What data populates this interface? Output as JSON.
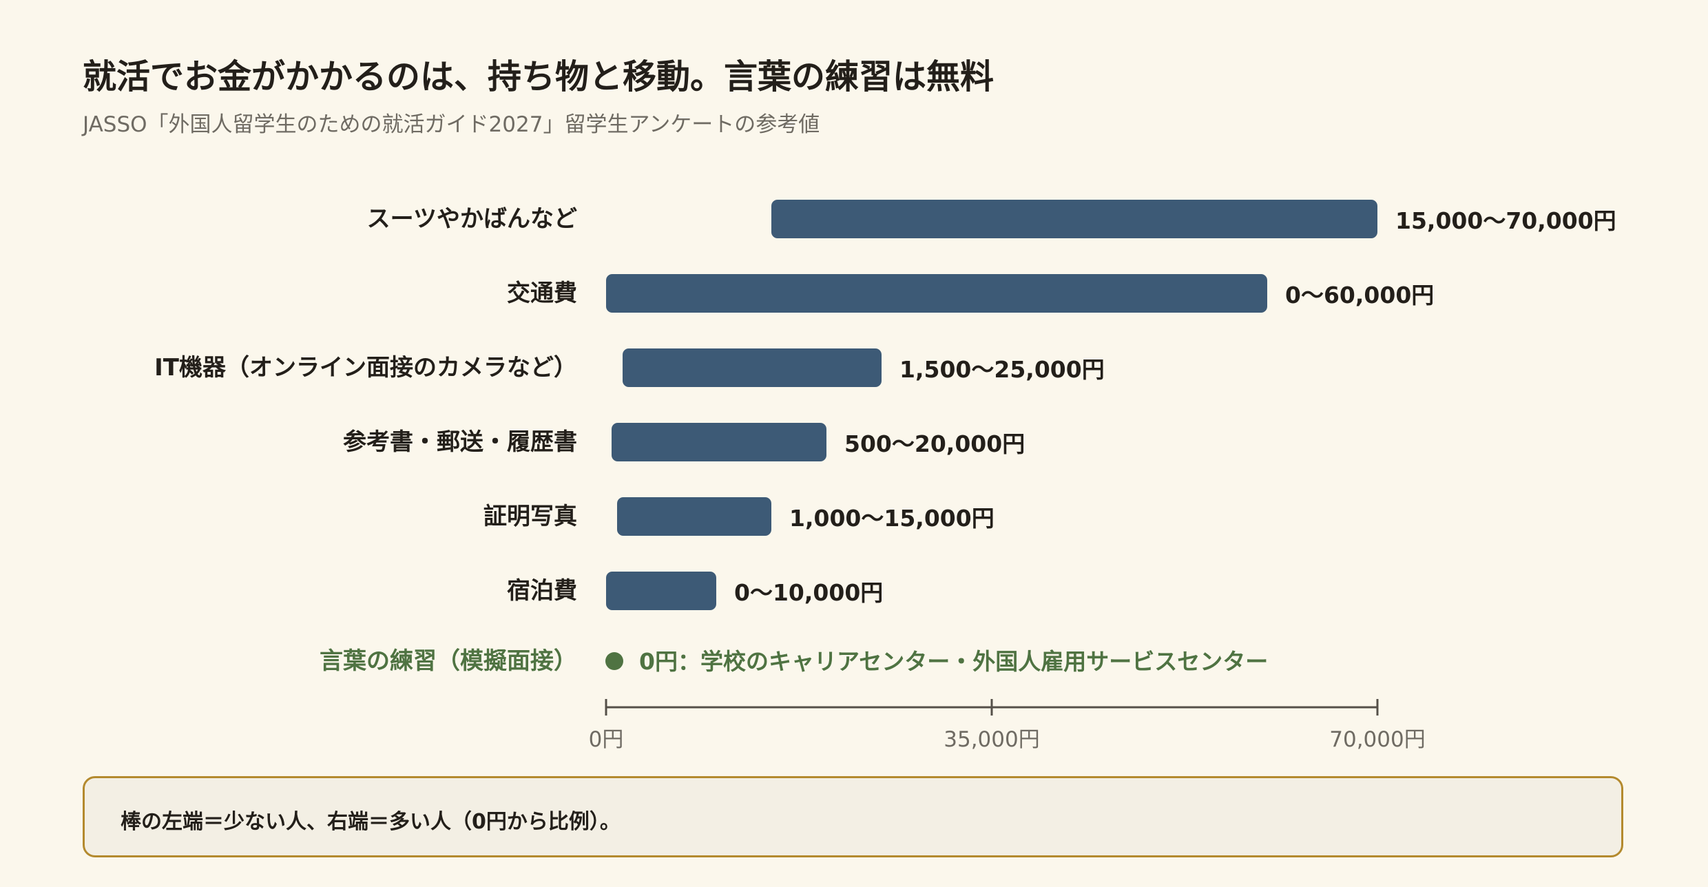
{
  "header": {
    "title": "就活でお金がかかるのは、持ち物と移動。言葉の練習は無料",
    "subtitle": "JASSO「外国人留学生のための就活ガイド2027」留学生アンケートの参考値"
  },
  "chart_data": {
    "type": "bar",
    "orientation": "horizontal",
    "bar_style": "range",
    "xlim": [
      0,
      70000
    ],
    "x_ticks": [
      {
        "value": 0,
        "label": "0円"
      },
      {
        "value": 35000,
        "label": "35,000円"
      },
      {
        "value": 70000,
        "label": "70,000円"
      }
    ],
    "categories": [
      {
        "label": "スーツやかばんなど",
        "min": 15000,
        "max": 70000,
        "value_label": "15,000〜70,000円"
      },
      {
        "label": "交通費",
        "min": 0,
        "max": 60000,
        "value_label": "0〜60,000円"
      },
      {
        "label": "IT機器（オンライン面接のカメラなど）",
        "min": 1500,
        "max": 25000,
        "value_label": "1,500〜25,000円"
      },
      {
        "label": "参考書・郵送・履歴書",
        "min": 500,
        "max": 20000,
        "value_label": "500〜20,000円"
      },
      {
        "label": "証明写真",
        "min": 1000,
        "max": 15000,
        "value_label": "1,000〜15,000円"
      },
      {
        "label": "宿泊費",
        "min": 0,
        "max": 10000,
        "value_label": "0〜10,000円"
      }
    ],
    "highlight": {
      "label": "言葉の練習（模擬面接）",
      "value": 0,
      "value_label": "0円：学校のキャリアセンター・外国人雇用サービスセンター"
    },
    "colors": {
      "bar": "#3d5a76",
      "highlight": "#4f7342",
      "axis": "#555049",
      "tick_label": "#6f6b63"
    },
    "grid": false,
    "legend": "none"
  },
  "note": {
    "text": "棒の左端＝少ない人、右端＝多い人（0円から比例）。"
  }
}
